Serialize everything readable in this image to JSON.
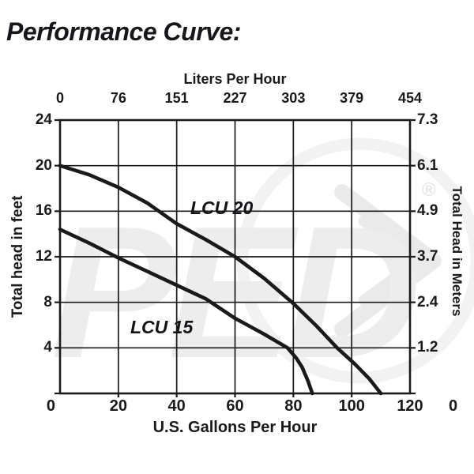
{
  "page": {
    "title": "Performance Curve:"
  },
  "watermark": {
    "logo_text": "PED",
    "registered_mark": "®"
  },
  "chart_data": {
    "type": "line",
    "title": "Performance Curve:",
    "grid": true,
    "top_axis": {
      "title": "Liters Per Hour",
      "ticks": [
        "0",
        "76",
        "151",
        "227",
        "303",
        "379",
        "454"
      ],
      "range": [
        0,
        454
      ]
    },
    "bottom_axis": {
      "title": "U.S. Gallons Per Hour",
      "ticks": [
        "0",
        "20",
        "40",
        "60",
        "80",
        "100",
        "120"
      ],
      "range": [
        0,
        120
      ]
    },
    "left_axis": {
      "title": "Total head in feet",
      "ticks": [
        "24",
        "20",
        "16",
        "12",
        "8",
        "4",
        "0"
      ],
      "range": [
        0,
        24
      ]
    },
    "right_axis": {
      "title": "Total Head in Meters",
      "ticks": [
        "7.3",
        "6.1",
        "4.9",
        "3.7",
        "2.4",
        "1.2",
        "0"
      ],
      "range": [
        0,
        7.3
      ]
    },
    "series": [
      {
        "name": "LCU 20",
        "x_unit": "US gallons per hour",
        "y_unit": "feet of head",
        "points": [
          [
            0,
            20
          ],
          [
            10,
            19.2
          ],
          [
            20,
            18.1
          ],
          [
            30,
            16.7
          ],
          [
            40,
            14.9
          ],
          [
            50,
            13.5
          ],
          [
            60,
            12
          ],
          [
            70,
            10.1
          ],
          [
            80,
            7.9
          ],
          [
            88,
            5.9
          ],
          [
            95,
            4
          ],
          [
            101,
            2.6
          ],
          [
            106,
            1.3
          ],
          [
            110,
            0
          ]
        ]
      },
      {
        "name": "LCU 15",
        "x_unit": "US gallons per hour",
        "y_unit": "feet of head",
        "points": [
          [
            0,
            14.4
          ],
          [
            10,
            13.2
          ],
          [
            20,
            11.9
          ],
          [
            30,
            10.7
          ],
          [
            40,
            9.5
          ],
          [
            50,
            8.3
          ],
          [
            60,
            6.6
          ],
          [
            70,
            5.2
          ],
          [
            78,
            4
          ],
          [
            81,
            3.1
          ],
          [
            83,
            2.3
          ],
          [
            85,
            1.1
          ],
          [
            86.5,
            0
          ]
        ]
      }
    ],
    "colors": {
      "line": "#1a1a1a",
      "grid": "#1a1a1a",
      "frame": "#1a1a1a",
      "text": "#1a1a1a",
      "watermark": "#ededed"
    }
  }
}
